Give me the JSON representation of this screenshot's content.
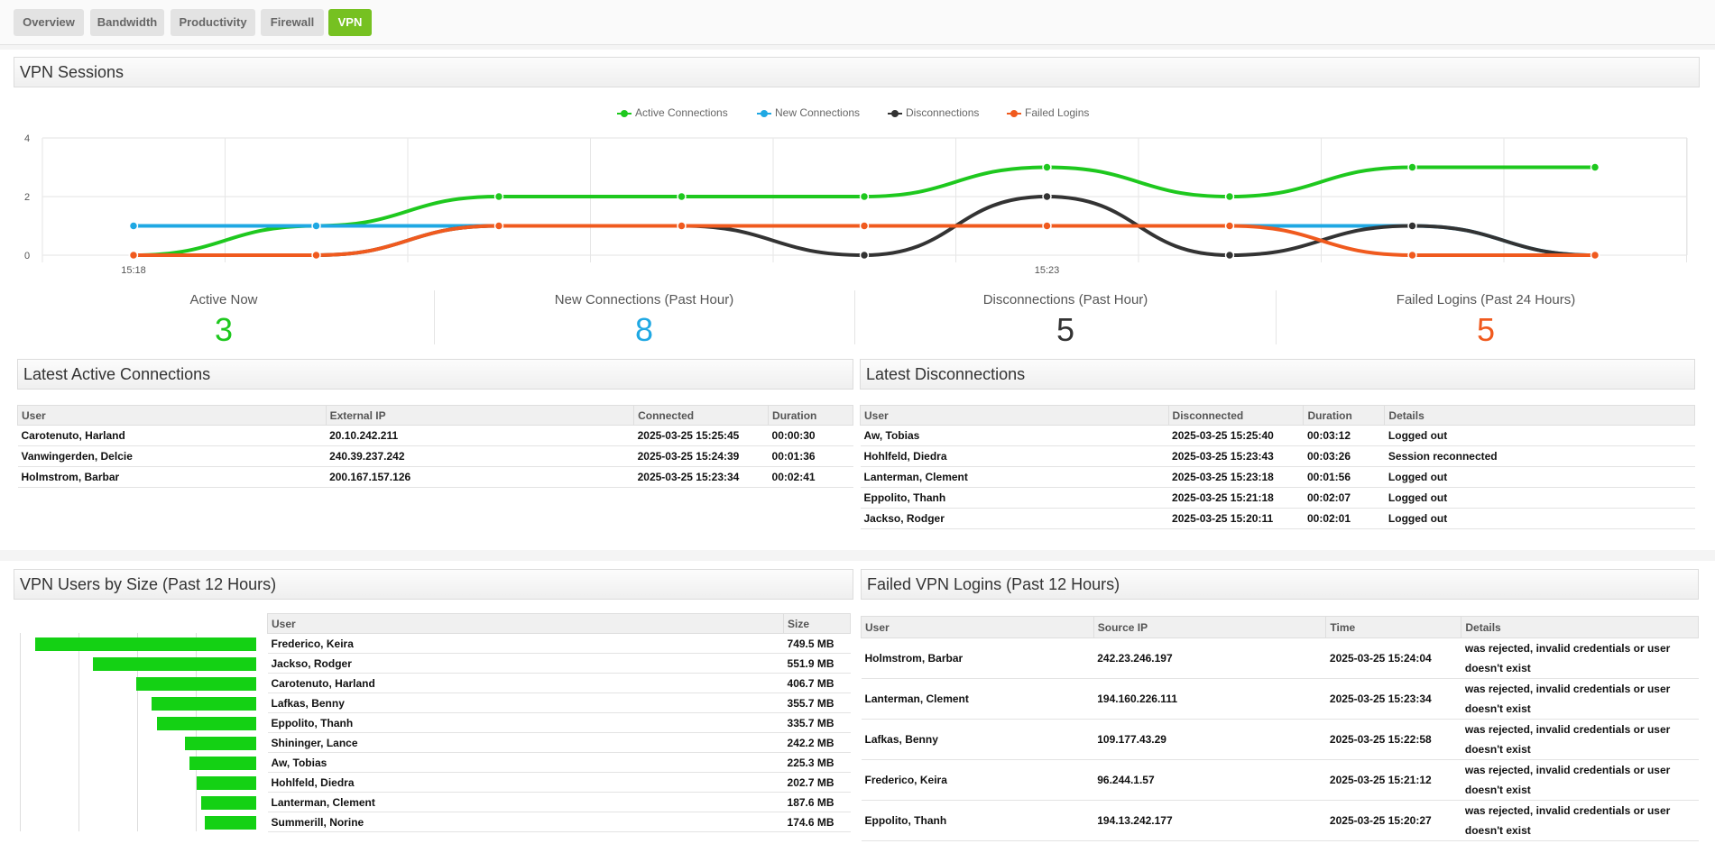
{
  "tabs": [
    "Overview",
    "Bandwidth",
    "Productivity",
    "Firewall",
    "VPN"
  ],
  "active_tab": "VPN",
  "colors": {
    "active": "#1ec81e",
    "new": "#1fa8e3",
    "disc": "#333333",
    "failed": "#f05a1e",
    "accent": "#76c121",
    "bar": "#14d114"
  },
  "sessions": {
    "title": "VPN Sessions"
  },
  "chart_data": {
    "type": "line",
    "x": [
      "15:18",
      "15:19",
      "15:20",
      "15:21",
      "15:22",
      "15:23",
      "15:24",
      "15:25",
      "15:26",
      "15:27"
    ],
    "tick_labels": [
      "15:18",
      "15:23"
    ],
    "ylim": [
      0,
      4
    ],
    "yticks": [
      "0",
      "2",
      "4"
    ],
    "legend_position": "top-center",
    "grid": true,
    "series": [
      {
        "name": "Active Connections",
        "color": "#1ec81e",
        "values": [
          0,
          1,
          2,
          2,
          2,
          3,
          2,
          3,
          3,
          null
        ]
      },
      {
        "name": "New Connections",
        "color": "#1fa8e3",
        "values": [
          1,
          1,
          1,
          1,
          1,
          1,
          1,
          1,
          0,
          null
        ]
      },
      {
        "name": "Disconnections",
        "color": "#333333",
        "values": [
          0,
          0,
          1,
          1,
          0,
          2,
          0,
          1,
          0,
          null
        ]
      },
      {
        "name": "Failed Logins",
        "color": "#f05a1e",
        "values": [
          0,
          0,
          1,
          1,
          1,
          1,
          1,
          0,
          0,
          null
        ]
      }
    ]
  },
  "stats": [
    {
      "label": "Active Now",
      "value": "3",
      "color": "#1ec81e"
    },
    {
      "label": "New Connections (Past Hour)",
      "value": "8",
      "color": "#1fa8e3"
    },
    {
      "label": "Disconnections (Past Hour)",
      "value": "5",
      "color": "#333333"
    },
    {
      "label": "Failed Logins (Past 24 Hours)",
      "value": "5",
      "color": "#f05a1e"
    }
  ],
  "active_connections": {
    "title": "Latest Active Connections",
    "columns": [
      "User",
      "External IP",
      "Connected",
      "Duration"
    ],
    "rows": [
      [
        "Carotenuto, Harland",
        "20.10.242.211",
        "2025-03-25 15:25:45",
        "00:00:30"
      ],
      [
        "Vanwingerden, Delcie",
        "240.39.237.242",
        "2025-03-25 15:24:39",
        "00:01:36"
      ],
      [
        "Holmstrom, Barbar",
        "200.167.157.126",
        "2025-03-25 15:23:34",
        "00:02:41"
      ]
    ]
  },
  "disconnections": {
    "title": "Latest Disconnections",
    "columns": [
      "User",
      "Disconnected",
      "Duration",
      "Details"
    ],
    "rows": [
      [
        "Aw, Tobias",
        "2025-03-25 15:25:40",
        "00:03:12",
        "Logged out"
      ],
      [
        "Hohlfeld, Diedra",
        "2025-03-25 15:23:43",
        "00:03:26",
        "Session reconnected"
      ],
      [
        "Lanterman, Clement",
        "2025-03-25 15:23:18",
        "00:01:56",
        "Logged out"
      ],
      [
        "Eppolito, Thanh",
        "2025-03-25 15:21:18",
        "00:02:07",
        "Logged out"
      ],
      [
        "Jackso, Rodger",
        "2025-03-25 15:20:11",
        "00:02:01",
        "Logged out"
      ]
    ]
  },
  "users_by_size": {
    "title": "VPN Users by Size (Past 12 Hours)",
    "columns": [
      "User",
      "Size"
    ],
    "max_mb": 800,
    "rows": [
      {
        "user": "Frederico, Keira",
        "size": "749.5 MB",
        "mb": 749.5
      },
      {
        "user": "Jackso, Rodger",
        "size": "551.9 MB",
        "mb": 551.9
      },
      {
        "user": "Carotenuto, Harland",
        "size": "406.7 MB",
        "mb": 406.7
      },
      {
        "user": "Lafkas, Benny",
        "size": "355.7 MB",
        "mb": 355.7
      },
      {
        "user": "Eppolito, Thanh",
        "size": "335.7 MB",
        "mb": 335.7
      },
      {
        "user": "Shininger, Lance",
        "size": "242.2 MB",
        "mb": 242.2
      },
      {
        "user": "Aw, Tobias",
        "size": "225.3 MB",
        "mb": 225.3
      },
      {
        "user": "Hohlfeld, Diedra",
        "size": "202.7 MB",
        "mb": 202.7
      },
      {
        "user": "Lanterman, Clement",
        "size": "187.6 MB",
        "mb": 187.6
      },
      {
        "user": "Summerill, Norine",
        "size": "174.6 MB",
        "mb": 174.6
      }
    ]
  },
  "failed_logins": {
    "title": "Failed VPN Logins (Past 12 Hours)",
    "columns": [
      "User",
      "Source IP",
      "Time",
      "Details"
    ],
    "rows": [
      [
        "Holmstrom, Barbar",
        "242.23.246.197",
        "2025-03-25 15:24:04",
        "was rejected, invalid credentials or user doesn't exist"
      ],
      [
        "Lanterman, Clement",
        "194.160.226.111",
        "2025-03-25 15:23:34",
        "was rejected, invalid credentials or user doesn't exist"
      ],
      [
        "Lafkas, Benny",
        "109.177.43.29",
        "2025-03-25 15:22:58",
        "was rejected, invalid credentials or user doesn't exist"
      ],
      [
        "Frederico, Keira",
        "96.244.1.57",
        "2025-03-25 15:21:12",
        "was rejected, invalid credentials or user doesn't exist"
      ],
      [
        "Eppolito, Thanh",
        "194.13.242.177",
        "2025-03-25 15:20:27",
        "was rejected, invalid credentials or user doesn't exist"
      ]
    ]
  }
}
